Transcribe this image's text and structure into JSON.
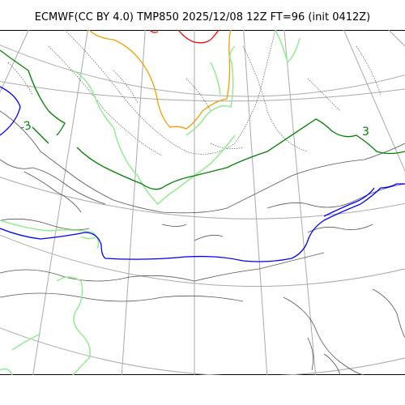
{
  "header": {
    "title": "ECMWF(CC BY 4.0) TMP850 2025/12/08 12Z FT=96 (init 0412Z)"
  },
  "map": {
    "labels": [
      {
        "text": "-3",
        "color": "#008000"
      },
      {
        "text": "3",
        "color": "#008000"
      }
    ],
    "colors": {
      "grid": "#aaaaaa",
      "coast": "#444444",
      "contour_minus_red": "#ff0000",
      "contour_orange": "#f0a000",
      "contour_lightgreen": "#90ee90",
      "contour_green": "#008000",
      "contour_blue": "#0000ff",
      "thin_dotted": "#555555"
    }
  }
}
